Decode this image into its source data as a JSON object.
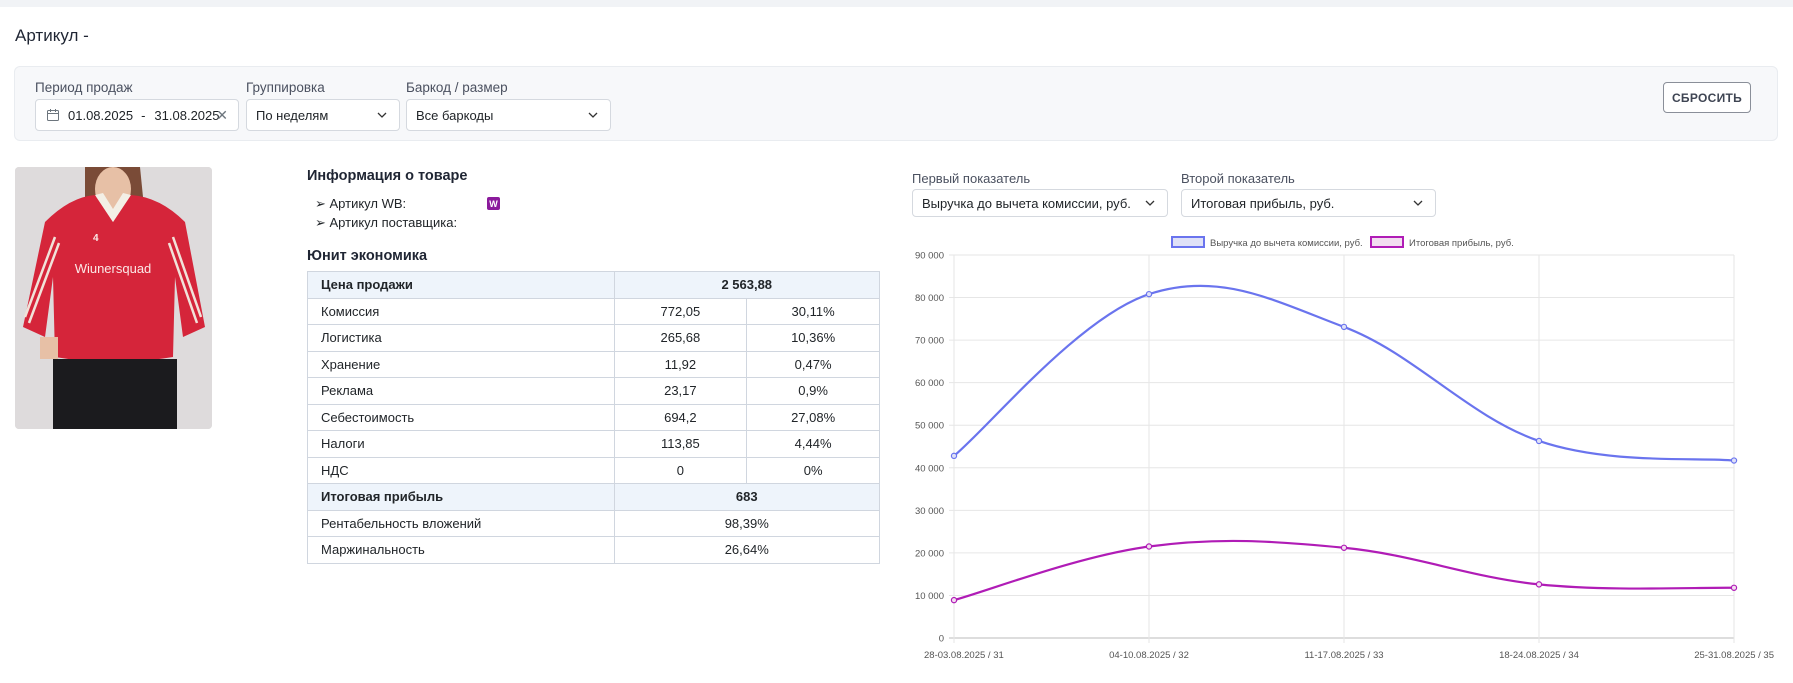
{
  "page": {
    "title": "Артикул -"
  },
  "filters": {
    "period": {
      "label": "Период продаж",
      "from": "01.08.2025",
      "sep": "-",
      "to": "31.08.2025"
    },
    "grouping": {
      "label": "Группировка",
      "value": "По неделям"
    },
    "barcode": {
      "label": "Баркод / размер",
      "value": "Все баркоды"
    },
    "reset_label": "СБРОСИТЬ"
  },
  "product_info": {
    "heading": "Информация о товаре",
    "wb_article_label": "➢ Артикул WB:",
    "supplier_article_label": "➢ Артикул поставщика:",
    "wb_badge": "W"
  },
  "unit_economics": {
    "heading": "Юнит экономика",
    "rows": [
      {
        "label": "Цена продажи",
        "value": "2 563,88",
        "highlight": true
      },
      {
        "label": "Комиссия",
        "value": "772,05",
        "percent": "30,11%"
      },
      {
        "label": "Логистика",
        "value": "265,68",
        "percent": "10,36%"
      },
      {
        "label": "Хранение",
        "value": "11,92",
        "percent": "0,47%"
      },
      {
        "label": "Реклама",
        "value": "23,17",
        "percent": "0,9%"
      },
      {
        "label": "Себестоимость",
        "value": "694,2",
        "percent": "27,08%"
      },
      {
        "label": "Налоги",
        "value": "113,85",
        "percent": "4,44%"
      },
      {
        "label": "НДС",
        "value": "0",
        "percent": "0%"
      },
      {
        "label": "Итоговая прибыль",
        "value": "683",
        "highlight": true
      },
      {
        "label": "Рентабельность вложений",
        "value": "98,39%"
      },
      {
        "label": "Маржинальность",
        "value": "26,64%"
      }
    ]
  },
  "chart_controls": {
    "first": {
      "label": "Первый показатель",
      "value": "Выручка до вычета комиссии, руб."
    },
    "second": {
      "label": "Второй показатель",
      "value": "Итоговая прибыль, руб."
    }
  },
  "chart_data": {
    "type": "line",
    "categories": [
      "28-03.08.2025 / 31",
      "04-10.08.2025 / 32",
      "11-17.08.2025 / 33",
      "18-24.08.2025 / 34",
      "25-31.08.2025 / 35"
    ],
    "series": [
      {
        "name": "Выручка до вычета комиссии, руб.",
        "color": "#6a74ee",
        "fill": "#dfe1f7",
        "values": [
          42800,
          80800,
          73100,
          46300,
          41700
        ]
      },
      {
        "name": "Итоговая прибыль, руб.",
        "color": "#b01cb6",
        "fill": "#f2ddf0",
        "values": [
          8900,
          21500,
          21200,
          12600,
          11800
        ]
      }
    ],
    "ylim": [
      0,
      90000
    ],
    "yticks": [
      "0",
      "10 000",
      "20 000",
      "30 000",
      "40 000",
      "50 000",
      "60 000",
      "70 000",
      "80 000",
      "90 000"
    ],
    "grid": true,
    "legend": "top"
  }
}
